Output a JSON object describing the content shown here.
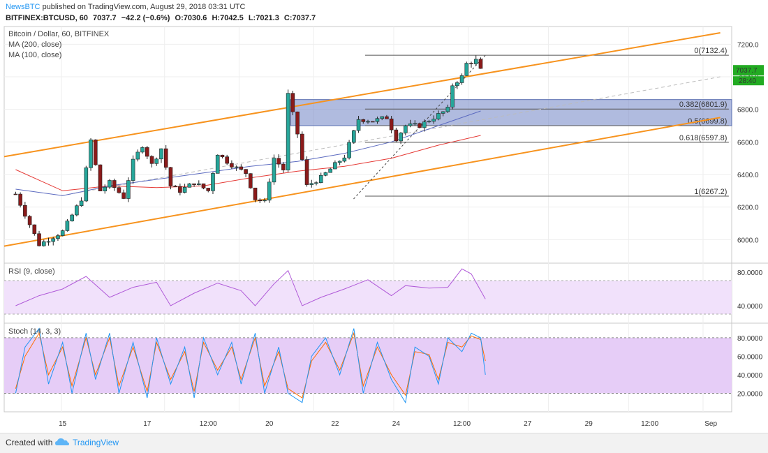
{
  "header": {
    "publisher": "NewsBTC",
    "published_text": " published on TradingView.com, August 29, 2018 03:31 UTC",
    "symbol": "BITFINEX:BTCUSD, 60",
    "last": "7037.7",
    "change": "−42.2 (−0.6%)",
    "o_label": "O:",
    "o_value": "7030.6",
    "h_label": "H:",
    "h_value": "7042.5",
    "l_label": "L:",
    "l_value": "7021.3",
    "c_label": "C:",
    "c_value": "7037.7"
  },
  "footer": {
    "created_with": "Created with",
    "brand": "TradingView"
  },
  "colors": {
    "up": "#26a69a",
    "down": "#8b1a1a",
    "channel": "#f7931e",
    "ma200": "#e53935",
    "ma100": "#5c6bc0",
    "fib_box": "#6f84c4",
    "rsi": "#b05ad8",
    "rsi_band": "#f1e1fb",
    "stoch_band": "#e6cdf7",
    "stoch_k": "#2196f3",
    "stoch_d": "#ff6d00",
    "price_label_bg": "#22ab22",
    "axis_text": "#333333",
    "grid": "#eeeeee"
  },
  "chart_data": [
    {
      "type": "candlestick",
      "title": "Bitcoin / Dollar, 60, BITFINEX",
      "legend": [
        "MA (200, close)",
        "MA (100, close)"
      ],
      "x_ticks": [
        "15",
        "17",
        "12:00",
        "20",
        "22",
        "24",
        "12:00",
        "27",
        "29",
        "12:00",
        "Sep"
      ],
      "y_ticks": [
        "6000.0",
        "6200.0",
        "6400.0",
        "6600.0",
        "6800.0",
        "7000.0",
        "7200.0"
      ],
      "ylim": [
        5860,
        7300
      ],
      "price_label": "7037.7",
      "countdown_label": "28:40",
      "close_path": [
        [
          0,
          6280
        ],
        [
          5,
          5970
        ],
        [
          10,
          6050
        ],
        [
          14,
          6250
        ],
        [
          16,
          6610
        ],
        [
          18,
          6300
        ],
        [
          20,
          6350
        ],
        [
          23,
          6260
        ],
        [
          25,
          6480
        ],
        [
          27,
          6580
        ],
        [
          29,
          6460
        ],
        [
          31,
          6560
        ],
        [
          33,
          6330
        ],
        [
          35,
          6300
        ],
        [
          38,
          6350
        ],
        [
          41,
          6300
        ],
        [
          43,
          6530
        ],
        [
          45,
          6480
        ],
        [
          47,
          6440
        ],
        [
          49,
          6410
        ],
        [
          51,
          6250
        ],
        [
          53,
          6230
        ],
        [
          55,
          6500
        ],
        [
          57,
          6430
        ],
        [
          58,
          6890
        ],
        [
          60,
          6650
        ],
        [
          62,
          6330
        ],
        [
          65,
          6380
        ],
        [
          68,
          6460
        ],
        [
          70,
          6510
        ],
        [
          72,
          6660
        ],
        [
          73,
          6740
        ],
        [
          76,
          6730
        ],
        [
          79,
          6750
        ],
        [
          81,
          6620
        ],
        [
          83,
          6700
        ],
        [
          86,
          6700
        ],
        [
          89,
          6750
        ],
        [
          92,
          6800
        ],
        [
          93,
          6950
        ],
        [
          95,
          7000
        ],
        [
          96,
          7080
        ],
        [
          98,
          7100
        ],
        [
          99,
          7040
        ]
      ],
      "ma200_path": [
        [
          0,
          6430
        ],
        [
          10,
          6300
        ],
        [
          20,
          6330
        ],
        [
          30,
          6320
        ],
        [
          40,
          6330
        ],
        [
          50,
          6380
        ],
        [
          60,
          6420
        ],
        [
          70,
          6450
        ],
        [
          80,
          6500
        ],
        [
          90,
          6580
        ],
        [
          99,
          6640
        ]
      ],
      "ma100_path": [
        [
          0,
          6310
        ],
        [
          10,
          6270
        ],
        [
          20,
          6330
        ],
        [
          30,
          6370
        ],
        [
          40,
          6410
        ],
        [
          50,
          6450
        ],
        [
          60,
          6480
        ],
        [
          70,
          6530
        ],
        [
          80,
          6600
        ],
        [
          90,
          6700
        ],
        [
          99,
          6790
        ]
      ],
      "channel_lines": [
        [
          [
            0,
            6510
          ],
          [
            125,
            7270
          ]
        ],
        [
          [
            0,
            5960
          ],
          [
            125,
            6750
          ]
        ]
      ],
      "midline": [
        [
          10,
          6270
        ],
        [
          125,
          7000
        ]
      ],
      "fib_trend": [
        [
          61,
          6250
        ],
        [
          100,
          7132.4
        ]
      ],
      "fib_box": {
        "x": [
          50,
          127
        ],
        "y": [
          6700,
          6860
        ]
      },
      "fib_levels": [
        {
          "label": "0(7132.4)",
          "value": 7132.4
        },
        {
          "label": "0.382(6801.9)",
          "value": 6801.9
        },
        {
          "label": "0.5(6699.8)",
          "value": 6699.8
        },
        {
          "label": "0.618(6597.8)",
          "value": 6597.8
        },
        {
          "label": "1(6267.2)",
          "value": 6267.2
        }
      ]
    },
    {
      "type": "line",
      "title": "RSI (9, close)",
      "y_ticks": [
        "40.0000",
        "80.0000"
      ],
      "ylim": [
        20,
        90
      ],
      "band": [
        30,
        70
      ],
      "path": [
        [
          0,
          40
        ],
        [
          5,
          52
        ],
        [
          10,
          60
        ],
        [
          15,
          75
        ],
        [
          20,
          50
        ],
        [
          25,
          62
        ],
        [
          30,
          68
        ],
        [
          33,
          40
        ],
        [
          38,
          55
        ],
        [
          43,
          67
        ],
        [
          48,
          58
        ],
        [
          51,
          40
        ],
        [
          55,
          66
        ],
        [
          58,
          82
        ],
        [
          61,
          40
        ],
        [
          65,
          50
        ],
        [
          70,
          60
        ],
        [
          75,
          71
        ],
        [
          80,
          52
        ],
        [
          83,
          64
        ],
        [
          88,
          61
        ],
        [
          92,
          62
        ],
        [
          95,
          84
        ],
        [
          97,
          78
        ],
        [
          100,
          48
        ]
      ]
    },
    {
      "type": "line",
      "title": "Stoch (14, 3, 3)",
      "y_ticks": [
        "20.0000",
        "40.0000",
        "60.0000",
        "80.0000"
      ],
      "ylim": [
        0,
        95
      ],
      "band": [
        20,
        80
      ],
      "k_path": [
        [
          0,
          20
        ],
        [
          2,
          70
        ],
        [
          5,
          90
        ],
        [
          7,
          30
        ],
        [
          10,
          75
        ],
        [
          12,
          20
        ],
        [
          15,
          85
        ],
        [
          17,
          35
        ],
        [
          20,
          85
        ],
        [
          22,
          20
        ],
        [
          25,
          75
        ],
        [
          28,
          15
        ],
        [
          30,
          80
        ],
        [
          33,
          30
        ],
        [
          36,
          70
        ],
        [
          38,
          15
        ],
        [
          40,
          80
        ],
        [
          43,
          40
        ],
        [
          46,
          75
        ],
        [
          48,
          30
        ],
        [
          51,
          85
        ],
        [
          53,
          20
        ],
        [
          56,
          70
        ],
        [
          58,
          20
        ],
        [
          61,
          10
        ],
        [
          63,
          60
        ],
        [
          66,
          80
        ],
        [
          69,
          40
        ],
        [
          72,
          90
        ],
        [
          74,
          20
        ],
        [
          77,
          75
        ],
        [
          80,
          35
        ],
        [
          83,
          10
        ],
        [
          85,
          70
        ],
        [
          88,
          60
        ],
        [
          90,
          30
        ],
        [
          92,
          80
        ],
        [
          95,
          65
        ],
        [
          97,
          85
        ],
        [
          99,
          80
        ],
        [
          100,
          40
        ]
      ],
      "d_path": [
        [
          0,
          25
        ],
        [
          2,
          60
        ],
        [
          5,
          85
        ],
        [
          7,
          40
        ],
        [
          10,
          70
        ],
        [
          12,
          28
        ],
        [
          15,
          80
        ],
        [
          17,
          40
        ],
        [
          20,
          80
        ],
        [
          22,
          28
        ],
        [
          25,
          70
        ],
        [
          28,
          22
        ],
        [
          30,
          75
        ],
        [
          33,
          35
        ],
        [
          36,
          65
        ],
        [
          38,
          22
        ],
        [
          40,
          75
        ],
        [
          43,
          45
        ],
        [
          46,
          70
        ],
        [
          48,
          35
        ],
        [
          51,
          80
        ],
        [
          53,
          28
        ],
        [
          56,
          65
        ],
        [
          58,
          25
        ],
        [
          61,
          15
        ],
        [
          63,
          55
        ],
        [
          66,
          75
        ],
        [
          69,
          45
        ],
        [
          72,
          85
        ],
        [
          74,
          28
        ],
        [
          77,
          70
        ],
        [
          80,
          40
        ],
        [
          83,
          18
        ],
        [
          85,
          65
        ],
        [
          88,
          62
        ],
        [
          90,
          35
        ],
        [
          92,
          75
        ],
        [
          95,
          70
        ],
        [
          97,
          82
        ],
        [
          99,
          78
        ],
        [
          100,
          55
        ]
      ]
    }
  ]
}
